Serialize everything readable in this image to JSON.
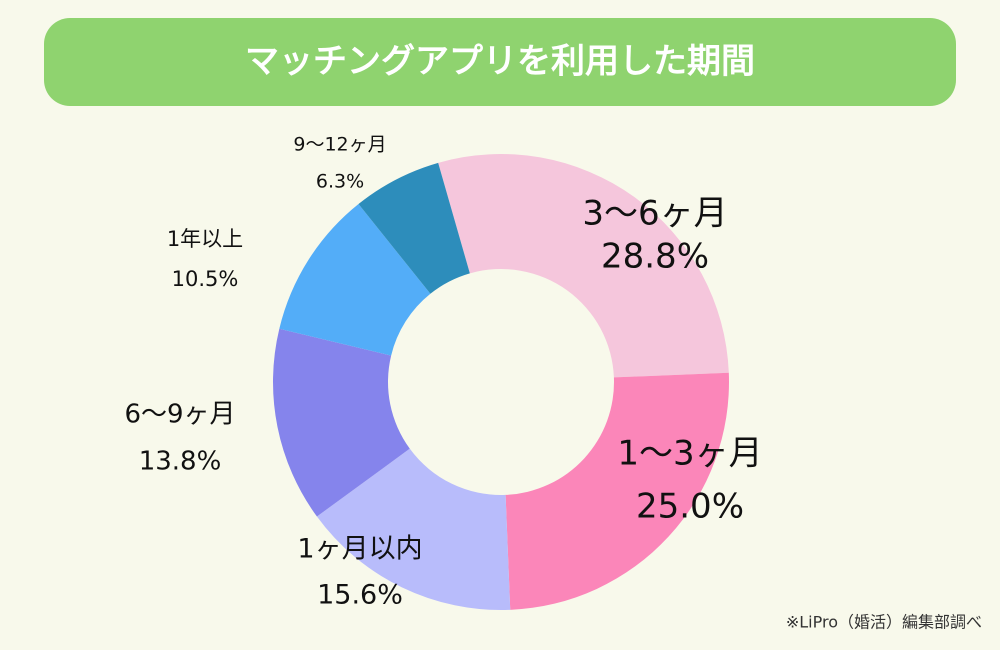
{
  "chart_data": {
    "type": "donut",
    "title": "マッチングアプリを利用した期間",
    "categories": [
      "3〜6ヶ月",
      "1〜3ヶ月",
      "1ヶ月以内",
      "6〜9ヶ月",
      "1年以上",
      "9〜12ヶ月"
    ],
    "values": [
      28.8,
      25.0,
      15.6,
      13.8,
      10.5,
      6.3
    ],
    "value_labels": [
      "28.8%",
      "25.0%",
      "15.6%",
      "13.8%",
      "10.5%",
      "6.3%"
    ],
    "colors": [
      "#f5c6dc",
      "#fb86b9",
      "#b8bcfb",
      "#8584ec",
      "#53adf8",
      "#2d8dbb"
    ],
    "note": "※LiPro（婚活）編集部調べ"
  }
}
